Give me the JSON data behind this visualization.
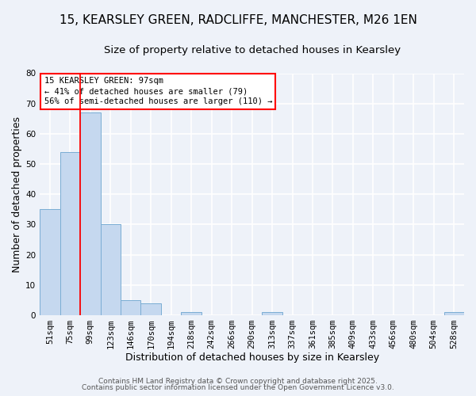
{
  "title": "15, KEARSLEY GREEN, RADCLIFFE, MANCHESTER, M26 1EN",
  "subtitle": "Size of property relative to detached houses in Kearsley",
  "xlabel": "Distribution of detached houses by size in Kearsley",
  "ylabel": "Number of detached properties",
  "bin_labels": [
    "51sqm",
    "75sqm",
    "99sqm",
    "123sqm",
    "146sqm",
    "170sqm",
    "194sqm",
    "218sqm",
    "242sqm",
    "266sqm",
    "290sqm",
    "313sqm",
    "337sqm",
    "361sqm",
    "385sqm",
    "409sqm",
    "433sqm",
    "456sqm",
    "480sqm",
    "504sqm",
    "528sqm"
  ],
  "bar_values": [
    35,
    54,
    67,
    30,
    5,
    4,
    0,
    1,
    0,
    0,
    0,
    1,
    0,
    0,
    0,
    0,
    0,
    0,
    0,
    0,
    1
  ],
  "bar_color": "#c5d8ef",
  "bar_edge_color": "#7aadd4",
  "ylim": [
    0,
    80
  ],
  "yticks": [
    0,
    10,
    20,
    30,
    40,
    50,
    60,
    70,
    80
  ],
  "annotation_box_text": "15 KEARSLEY GREEN: 97sqm\n← 41% of detached houses are smaller (79)\n56% of semi-detached houses are larger (110) →",
  "footer_line1": "Contains HM Land Registry data © Crown copyright and database right 2025.",
  "footer_line2": "Contains public sector information licensed under the Open Government Licence v3.0.",
  "background_color": "#eef2f9",
  "grid_color": "#ffffff",
  "title_fontsize": 11,
  "subtitle_fontsize": 9.5,
  "axis_label_fontsize": 9,
  "tick_fontsize": 7.5,
  "annotation_fontsize": 7.5,
  "footer_fontsize": 6.5
}
